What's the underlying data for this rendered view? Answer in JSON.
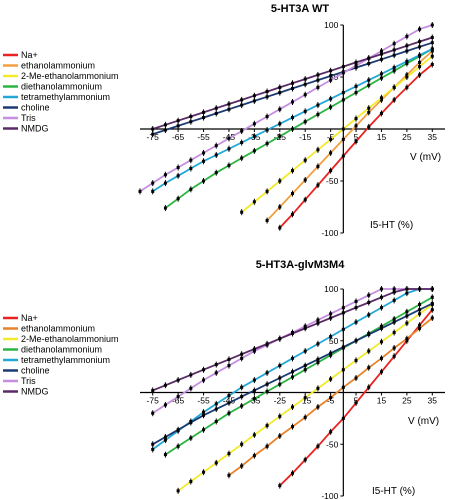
{
  "chart_data": [
    {
      "type": "line",
      "title": "5-HT3A WT",
      "xlabel": "V (mV)",
      "ylabel": "I5-HT (%)",
      "xlim": [
        -80,
        40
      ],
      "ylim": [
        -100,
        100
      ],
      "xticks": [
        -75,
        -65,
        -55,
        -45,
        -35,
        -25,
        -15,
        -5,
        5,
        15,
        25,
        35
      ],
      "xtick_labels": [
        "-75",
        "-65",
        "-55",
        "-45",
        "-35",
        "-25",
        "-15",
        "-5",
        "5",
        "15",
        "25",
        "35"
      ],
      "yticks": [
        100,
        50,
        -50,
        -100
      ],
      "ytick_labels": [
        "100",
        "50",
        "-50",
        "-100"
      ],
      "grid": false,
      "legend_position": "left",
      "series": [
        {
          "name": "Na+",
          "color": "#e8231f",
          "x": [
            -25,
            -20,
            -15,
            -10,
            -5,
            0,
            5,
            10,
            15,
            20,
            25,
            30,
            35
          ],
          "y": [
            -95,
            -82,
            -68,
            -54,
            -40,
            -26,
            -12,
            2,
            15,
            28,
            40,
            52,
            62
          ]
        },
        {
          "name": "ethanolammonium",
          "color": "#f0a040",
          "x": [
            -30,
            -25,
            -20,
            -15,
            -10,
            -5,
            0,
            5,
            10,
            15,
            20,
            25,
            30,
            35
          ],
          "y": [
            -88,
            -75,
            -62,
            -49,
            -36,
            -23,
            -10,
            3,
            16,
            28,
            40,
            52,
            64,
            75
          ]
        },
        {
          "name": "2-Me-ethanolammonium",
          "color": "#f2ea2a",
          "x": [
            -40,
            -35,
            -30,
            -25,
            -20,
            -15,
            -10,
            -5,
            0,
            5,
            10,
            15,
            20,
            25,
            30,
            35
          ],
          "y": [
            -80,
            -70,
            -60,
            -50,
            -40,
            -30,
            -20,
            -10,
            0,
            10,
            20,
            30,
            40,
            50,
            60,
            70
          ]
        },
        {
          "name": "diethanolammonium",
          "color": "#2ab543",
          "x": [
            -70,
            -65,
            -60,
            -55,
            -50,
            -45,
            -40,
            -35,
            -30,
            -25,
            -20,
            -15,
            -10,
            -5,
            0,
            5,
            10,
            15,
            20,
            25,
            30,
            35
          ],
          "y": [
            -76,
            -67,
            -58,
            -50,
            -42,
            -35,
            -28,
            -21,
            -14,
            -7,
            0,
            7,
            14,
            21,
            28,
            35,
            42,
            49,
            56,
            63,
            70,
            77
          ]
        },
        {
          "name": "tetramethylammonium",
          "color": "#22a8d8",
          "x": [
            -75,
            -70,
            -65,
            -60,
            -55,
            -50,
            -45,
            -40,
            -35,
            -30,
            -25,
            -20,
            -15,
            -10,
            -5,
            0,
            5,
            10,
            15,
            20,
            25,
            30,
            35
          ],
          "y": [
            -60,
            -52,
            -45,
            -38,
            -31,
            -25,
            -19,
            -13,
            -7,
            -1,
            5,
            11,
            17,
            23,
            29,
            35,
            41,
            47,
            53,
            59,
            65,
            71,
            77
          ]
        },
        {
          "name": "choline",
          "color": "#1c3a72",
          "x": [
            -75,
            -70,
            -65,
            -60,
            -55,
            -50,
            -45,
            -40,
            -35,
            -30,
            -25,
            -20,
            -15,
            -10,
            -5,
            0,
            5,
            10,
            15,
            20,
            25,
            30,
            35
          ],
          "y": [
            -5,
            -1,
            3,
            7,
            11,
            15,
            19,
            23,
            27,
            31,
            35,
            39,
            43,
            47,
            51,
            55,
            59,
            63,
            67,
            71,
            75,
            79,
            83
          ]
        },
        {
          "name": "Tris",
          "color": "#c58ee0",
          "x": [
            -80,
            -75,
            -70,
            -65,
            -60,
            -55,
            -50,
            -45,
            -40,
            -35,
            -30,
            -25,
            -20,
            -15,
            -10,
            -5,
            0,
            5,
            10,
            15,
            20,
            25,
            30,
            35
          ],
          "y": [
            -60,
            -52,
            -44,
            -37,
            -30,
            -23,
            -16,
            -9,
            -2,
            5,
            12,
            19,
            26,
            33,
            40,
            47,
            54,
            61,
            68,
            75,
            82,
            89,
            96,
            103
          ]
        },
        {
          "name": "NMDG",
          "color": "#5a2a66",
          "x": [
            -75,
            -70,
            -65,
            -60,
            -55,
            -50,
            -45,
            -40,
            -35,
            -30,
            -25,
            -20,
            -15,
            -10,
            -5,
            0,
            5,
            10,
            15,
            20,
            25,
            30,
            35
          ],
          "y": [
            0,
            4,
            8,
            12,
            16,
            20,
            24,
            28,
            32,
            36,
            40,
            44,
            48,
            52,
            56,
            60,
            64,
            68,
            72,
            76,
            80,
            84,
            88
          ]
        }
      ]
    },
    {
      "type": "line",
      "title": "5-HT3A-glvM3M4",
      "xlabel": "V (mV)",
      "ylabel": "I5-HT (%)",
      "xlim": [
        -80,
        40
      ],
      "ylim": [
        -100,
        100
      ],
      "xticks": [
        -75,
        -65,
        -55,
        -45,
        -35,
        -25,
        -15,
        -5,
        5,
        15,
        25,
        35
      ],
      "xtick_labels": [
        "-75",
        "-65",
        "-55",
        "-45",
        "-35",
        "-25",
        "-15",
        "-5",
        "5",
        "15",
        "25",
        "35"
      ],
      "yticks": [
        100,
        50,
        -50,
        -100
      ],
      "ytick_labels": [
        "100",
        "50",
        "-50",
        "-100"
      ],
      "grid": false,
      "legend_position": "left",
      "series": [
        {
          "name": "Na+",
          "color": "#e8231f",
          "x": [
            -25,
            -20,
            -15,
            -10,
            -5,
            0,
            5,
            10,
            15,
            20,
            25,
            30,
            35
          ],
          "y": [
            -90,
            -78,
            -65,
            -52,
            -38,
            -25,
            -10,
            5,
            20,
            35,
            50,
            65,
            80
          ]
        },
        {
          "name": "ethanolammonium",
          "color": "#e8832a",
          "x": [
            -45,
            -40,
            -35,
            -30,
            -25,
            -20,
            -15,
            -10,
            -5,
            0,
            5,
            10,
            15,
            20,
            25,
            30,
            35
          ],
          "y": [
            -80,
            -71,
            -61,
            -52,
            -42,
            -33,
            -24,
            -14,
            -5,
            5,
            14,
            24,
            33,
            43,
            52,
            62,
            72
          ]
        },
        {
          "name": "2-Me-ethanolammonium",
          "color": "#f2ea2a",
          "x": [
            -65,
            -60,
            -55,
            -50,
            -45,
            -40,
            -35,
            -30,
            -25,
            -20,
            -15,
            -10,
            -5,
            0,
            5,
            10,
            15,
            20,
            25,
            30,
            35
          ],
          "y": [
            -95,
            -86,
            -77,
            -68,
            -59,
            -50,
            -41,
            -32,
            -23,
            -14,
            -5,
            4,
            13,
            22,
            31,
            40,
            49,
            58,
            67,
            76,
            85
          ]
        },
        {
          "name": "diethanolammonium",
          "color": "#2ab543",
          "x": [
            -70,
            -65,
            -60,
            -55,
            -50,
            -45,
            -40,
            -35,
            -30,
            -25,
            -20,
            -15,
            -10,
            -5,
            0,
            5,
            10,
            15,
            20,
            25,
            30,
            35
          ],
          "y": [
            -60,
            -52,
            -44,
            -36,
            -28,
            -20,
            -13,
            -6,
            1,
            8,
            15,
            22,
            29,
            36,
            43,
            50,
            57,
            64,
            71,
            78,
            85,
            92
          ]
        },
        {
          "name": "tetramethylammonium",
          "color": "#22a8d8",
          "x": [
            -75,
            -70,
            -65,
            -60,
            -55,
            -50,
            -45,
            -40,
            -35,
            -30,
            -25,
            -20,
            -15,
            -10,
            -5,
            0,
            5,
            10,
            15,
            20,
            25,
            30,
            35
          ],
          "y": [
            -55,
            -46,
            -37,
            -28,
            -19,
            -11,
            -3,
            5,
            12,
            19,
            26,
            33,
            40,
            47,
            54,
            61,
            68,
            75,
            82,
            89,
            96,
            100,
            100
          ]
        },
        {
          "name": "choline",
          "color": "#1c3a72",
          "x": [
            -75,
            -70,
            -65,
            -60,
            -55,
            -50,
            -45,
            -40,
            -35,
            -30,
            -25,
            -20,
            -15,
            -10,
            -5,
            0,
            5,
            10,
            15,
            20,
            25,
            30,
            35
          ],
          "y": [
            -50,
            -43,
            -36,
            -29,
            -22,
            -16,
            -10,
            -4,
            2,
            8,
            14,
            20,
            26,
            32,
            38,
            44,
            50,
            56,
            62,
            68,
            74,
            80,
            86
          ]
        },
        {
          "name": "Tris",
          "color": "#c58ee0",
          "x": [
            -75,
            -70,
            -65,
            -60,
            -55,
            -50,
            -45,
            -40,
            -35,
            -30,
            -25,
            -20,
            -15,
            -10,
            -5,
            0,
            5,
            10,
            15,
            20,
            25,
            30,
            35
          ],
          "y": [
            -20,
            -12,
            -4,
            4,
            12,
            19,
            26,
            33,
            40,
            46,
            52,
            58,
            64,
            70,
            76,
            82,
            88,
            94,
            100,
            100,
            100,
            100,
            100
          ]
        },
        {
          "name": "NMDG",
          "color": "#5a2a66",
          "x": [
            -75,
            -70,
            -65,
            -60,
            -55,
            -50,
            -45,
            -40,
            -35,
            -30,
            -25,
            -20,
            -15,
            -10,
            -5,
            0,
            5,
            10,
            15,
            20,
            25,
            30,
            35
          ],
          "y": [
            2,
            7,
            12,
            17,
            22,
            27,
            32,
            37,
            42,
            47,
            52,
            57,
            62,
            67,
            72,
            77,
            82,
            87,
            92,
            97,
            100,
            100,
            100
          ]
        }
      ]
    }
  ]
}
